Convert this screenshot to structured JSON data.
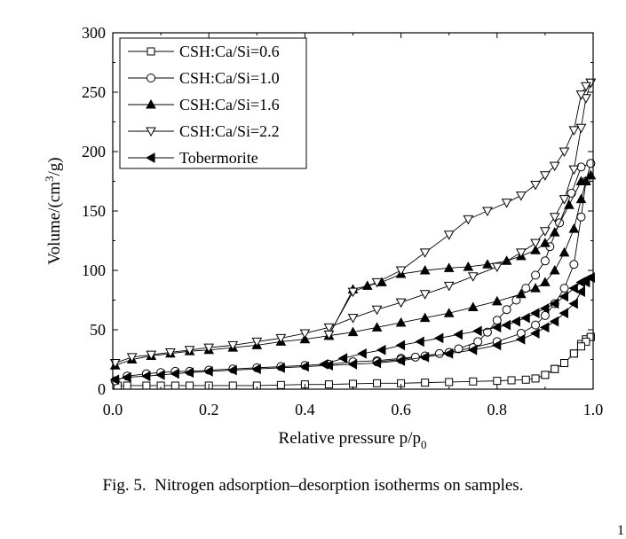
{
  "chart_data": {
    "type": "line",
    "figure_label": "Fig. 5.",
    "caption": "Nitrogen adsorption–desorption isotherms on samples.",
    "xlabel": "Relative pressure p/p",
    "xlabel_sub": "0",
    "ylabel": "Volume/(cm",
    "ylabel_sup": "3",
    "ylabel_end": "/g)",
    "xlim": [
      0.0,
      1.0
    ],
    "ylim": [
      0,
      300
    ],
    "xticks": [
      0.0,
      0.2,
      0.4,
      0.6,
      0.8,
      1.0
    ],
    "xtick_labels": [
      "0.0",
      "0.2",
      "0.4",
      "0.6",
      "0.8",
      "1.0"
    ],
    "yticks": [
      0,
      50,
      100,
      150,
      200,
      250,
      300
    ],
    "ytick_labels": [
      "0",
      "50",
      "100",
      "150",
      "200",
      "250",
      "300"
    ],
    "grid": false,
    "legend_position": "top-left",
    "series": [
      {
        "name": "CSH:Ca/Si=0.6",
        "marker": "square-open",
        "adsorption": [
          [
            0.01,
            3
          ],
          [
            0.03,
            3
          ],
          [
            0.07,
            3
          ],
          [
            0.1,
            3
          ],
          [
            0.13,
            3
          ],
          [
            0.16,
            3
          ],
          [
            0.2,
            3
          ],
          [
            0.25,
            3
          ],
          [
            0.3,
            3
          ],
          [
            0.35,
            3.5
          ],
          [
            0.4,
            4
          ],
          [
            0.45,
            4
          ],
          [
            0.5,
            4.5
          ],
          [
            0.55,
            5
          ],
          [
            0.6,
            5
          ],
          [
            0.65,
            5.5
          ],
          [
            0.7,
            6
          ],
          [
            0.75,
            6.5
          ],
          [
            0.8,
            7
          ],
          [
            0.83,
            7.5
          ],
          [
            0.86,
            8
          ],
          [
            0.88,
            9
          ],
          [
            0.9,
            12
          ],
          [
            0.92,
            17
          ],
          [
            0.94,
            22
          ],
          [
            0.96,
            30
          ],
          [
            0.975,
            38
          ],
          [
            0.985,
            42
          ],
          [
            0.995,
            44
          ]
        ],
        "desorption": [
          [
            0.995,
            44
          ],
          [
            0.985,
            40
          ],
          [
            0.975,
            36
          ],
          [
            0.96,
            30
          ],
          [
            0.94,
            22
          ],
          [
            0.92,
            17
          ],
          [
            0.9,
            12
          ]
        ]
      },
      {
        "name": "CSH:Ca/Si=1.0",
        "marker": "circle-open",
        "adsorption": [
          [
            0.005,
            7
          ],
          [
            0.03,
            11
          ],
          [
            0.07,
            13
          ],
          [
            0.1,
            14
          ],
          [
            0.13,
            15
          ],
          [
            0.16,
            15
          ],
          [
            0.2,
            16
          ],
          [
            0.25,
            17
          ],
          [
            0.3,
            18
          ],
          [
            0.35,
            19
          ],
          [
            0.4,
            20
          ],
          [
            0.45,
            21
          ],
          [
            0.5,
            23
          ],
          [
            0.55,
            24
          ],
          [
            0.6,
            26
          ],
          [
            0.65,
            28
          ],
          [
            0.7,
            31
          ],
          [
            0.75,
            35
          ],
          [
            0.8,
            40
          ],
          [
            0.85,
            47
          ],
          [
            0.88,
            54
          ],
          [
            0.9,
            62
          ],
          [
            0.92,
            72
          ],
          [
            0.94,
            85
          ],
          [
            0.96,
            105
          ],
          [
            0.975,
            145
          ],
          [
            0.985,
            175
          ],
          [
            0.995,
            190
          ]
        ],
        "desorption": [
          [
            0.995,
            190
          ],
          [
            0.975,
            187
          ],
          [
            0.955,
            165
          ],
          [
            0.93,
            140
          ],
          [
            0.91,
            120
          ],
          [
            0.9,
            108
          ],
          [
            0.88,
            96
          ],
          [
            0.86,
            85
          ],
          [
            0.84,
            75
          ],
          [
            0.82,
            67
          ],
          [
            0.8,
            58
          ],
          [
            0.78,
            48
          ],
          [
            0.76,
            40
          ],
          [
            0.72,
            34
          ],
          [
            0.68,
            30
          ],
          [
            0.63,
            27
          ],
          [
            0.6,
            25
          ],
          [
            0.55,
            23
          ]
        ]
      },
      {
        "name": "CSH:Ca/Si=1.6",
        "marker": "triangle-up-filled",
        "adsorption": [
          [
            0.005,
            20
          ],
          [
            0.04,
            25
          ],
          [
            0.08,
            28
          ],
          [
            0.12,
            30
          ],
          [
            0.16,
            32
          ],
          [
            0.2,
            33
          ],
          [
            0.25,
            35
          ],
          [
            0.3,
            37
          ],
          [
            0.35,
            40
          ],
          [
            0.4,
            42
          ],
          [
            0.45,
            45
          ],
          [
            0.5,
            48
          ],
          [
            0.55,
            52
          ],
          [
            0.6,
            56
          ],
          [
            0.65,
            60
          ],
          [
            0.7,
            64
          ],
          [
            0.75,
            69
          ],
          [
            0.8,
            74
          ],
          [
            0.85,
            80
          ],
          [
            0.88,
            85
          ],
          [
            0.9,
            90
          ],
          [
            0.92,
            100
          ],
          [
            0.94,
            115
          ],
          [
            0.96,
            135
          ],
          [
            0.975,
            160
          ],
          [
            0.985,
            175
          ],
          [
            0.995,
            180
          ]
        ],
        "desorption": [
          [
            0.995,
            180
          ],
          [
            0.975,
            175
          ],
          [
            0.95,
            155
          ],
          [
            0.92,
            132
          ],
          [
            0.9,
            123
          ],
          [
            0.88,
            117
          ],
          [
            0.85,
            112
          ],
          [
            0.82,
            108
          ],
          [
            0.78,
            105
          ],
          [
            0.74,
            103
          ],
          [
            0.7,
            102
          ],
          [
            0.65,
            100
          ],
          [
            0.6,
            97
          ],
          [
            0.56,
            90
          ],
          [
            0.53,
            87
          ],
          [
            0.5,
            84
          ],
          [
            0.45,
            45
          ]
        ]
      },
      {
        "name": "CSH:Ca/Si=2.2",
        "marker": "triangle-down-open",
        "adsorption": [
          [
            0.005,
            22
          ],
          [
            0.04,
            27
          ],
          [
            0.08,
            29
          ],
          [
            0.12,
            31
          ],
          [
            0.16,
            33
          ],
          [
            0.2,
            35
          ],
          [
            0.25,
            37
          ],
          [
            0.3,
            40
          ],
          [
            0.35,
            43
          ],
          [
            0.4,
            47
          ],
          [
            0.45,
            52
          ],
          [
            0.5,
            60
          ],
          [
            0.55,
            67
          ],
          [
            0.6,
            73
          ],
          [
            0.65,
            80
          ],
          [
            0.7,
            87
          ],
          [
            0.75,
            95
          ],
          [
            0.8,
            103
          ],
          [
            0.85,
            115
          ],
          [
            0.88,
            123
          ],
          [
            0.9,
            133
          ],
          [
            0.92,
            145
          ],
          [
            0.94,
            160
          ],
          [
            0.96,
            185
          ],
          [
            0.975,
            220
          ],
          [
            0.985,
            245
          ],
          [
            0.995,
            258
          ]
        ],
        "desorption": [
          [
            0.995,
            258
          ],
          [
            0.985,
            255
          ],
          [
            0.975,
            248
          ],
          [
            0.96,
            218
          ],
          [
            0.94,
            200
          ],
          [
            0.92,
            188
          ],
          [
            0.9,
            180
          ],
          [
            0.88,
            172
          ],
          [
            0.85,
            163
          ],
          [
            0.82,
            157
          ],
          [
            0.78,
            150
          ],
          [
            0.74,
            143
          ],
          [
            0.7,
            130
          ],
          [
            0.65,
            115
          ],
          [
            0.6,
            100
          ],
          [
            0.55,
            90
          ],
          [
            0.5,
            82
          ],
          [
            0.45,
            46
          ]
        ]
      },
      {
        "name": "Tobermorite",
        "marker": "triangle-left-filled",
        "adsorption": [
          [
            0.005,
            8
          ],
          [
            0.03,
            10
          ],
          [
            0.07,
            11
          ],
          [
            0.1,
            12
          ],
          [
            0.13,
            13
          ],
          [
            0.16,
            14
          ],
          [
            0.2,
            15
          ],
          [
            0.25,
            16
          ],
          [
            0.3,
            17
          ],
          [
            0.35,
            18
          ],
          [
            0.4,
            19
          ],
          [
            0.45,
            20
          ],
          [
            0.5,
            21
          ],
          [
            0.55,
            22
          ],
          [
            0.6,
            24
          ],
          [
            0.65,
            27
          ],
          [
            0.7,
            30
          ],
          [
            0.75,
            33
          ],
          [
            0.8,
            37
          ],
          [
            0.85,
            42
          ],
          [
            0.88,
            47
          ],
          [
            0.9,
            52
          ],
          [
            0.92,
            57
          ],
          [
            0.94,
            64
          ],
          [
            0.96,
            72
          ],
          [
            0.975,
            82
          ],
          [
            0.985,
            90
          ],
          [
            0.995,
            94
          ]
        ],
        "desorption": [
          [
            0.995,
            94
          ],
          [
            0.985,
            92
          ],
          [
            0.975,
            90
          ],
          [
            0.96,
            85
          ],
          [
            0.94,
            78
          ],
          [
            0.92,
            72
          ],
          [
            0.9,
            68
          ],
          [
            0.88,
            64
          ],
          [
            0.86,
            60
          ],
          [
            0.84,
            57
          ],
          [
            0.82,
            54
          ],
          [
            0.8,
            52
          ],
          [
            0.76,
            49
          ],
          [
            0.72,
            46
          ],
          [
            0.68,
            43
          ],
          [
            0.64,
            40
          ],
          [
            0.6,
            37
          ],
          [
            0.56,
            33
          ],
          [
            0.52,
            30
          ],
          [
            0.48,
            26
          ],
          [
            0.44,
            21
          ]
        ]
      }
    ]
  },
  "page": {
    "page_mark": "1"
  }
}
